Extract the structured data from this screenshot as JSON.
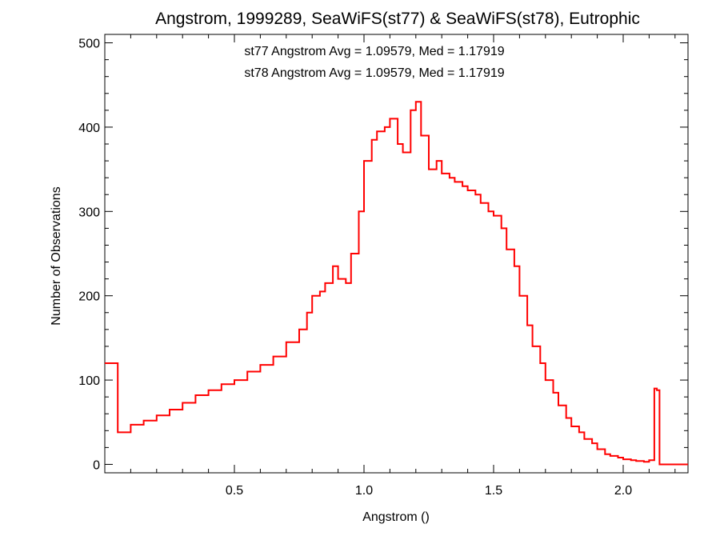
{
  "chart_data": {
    "type": "line",
    "title": "Angstrom, 1999289, SeaWiFS(st77) & SeaWiFS(st78), Eutrophic",
    "xlabel": "Angstrom ()",
    "ylabel": "Number of Observations",
    "xlim": [
      0.0,
      2.25
    ],
    "ylim": [
      -10,
      510
    ],
    "xticks": [
      0.5,
      1.0,
      1.5,
      2.0
    ],
    "xtick_labels": [
      "0.5",
      "1.0",
      "1.5",
      "2.0"
    ],
    "yticks": [
      0,
      100,
      200,
      300,
      400,
      500
    ],
    "ytick_labels": [
      "0",
      "100",
      "200",
      "300",
      "400",
      "500"
    ],
    "grid": false,
    "annotations": [
      {
        "text": "st77 Angstrom Avg = 1.09579, Med = 1.17919",
        "color": "#000000"
      },
      {
        "text": "st78 Angstrom Avg = 1.09579, Med = 1.17919",
        "color": "#ff0000"
      }
    ],
    "series": [
      {
        "color": "#ff0000",
        "step": "histogram",
        "x": [
          0.0,
          0.05,
          0.1,
          0.15,
          0.2,
          0.25,
          0.3,
          0.35,
          0.4,
          0.45,
          0.5,
          0.55,
          0.6,
          0.65,
          0.7,
          0.75,
          0.78,
          0.8,
          0.83,
          0.85,
          0.88,
          0.9,
          0.93,
          0.95,
          0.98,
          1.0,
          1.03,
          1.05,
          1.08,
          1.1,
          1.13,
          1.15,
          1.18,
          1.2,
          1.22,
          1.25,
          1.28,
          1.3,
          1.33,
          1.35,
          1.38,
          1.4,
          1.43,
          1.45,
          1.48,
          1.5,
          1.53,
          1.55,
          1.58,
          1.6,
          1.63,
          1.65,
          1.68,
          1.7,
          1.73,
          1.75,
          1.78,
          1.8,
          1.83,
          1.85,
          1.88,
          1.9,
          1.93,
          1.95,
          1.98,
          2.0,
          2.03,
          2.05,
          2.08,
          2.1,
          2.12,
          2.13,
          2.14,
          2.15,
          2.16,
          2.18,
          2.2,
          2.225
        ],
        "values": [
          120,
          38,
          47,
          52,
          58,
          65,
          73,
          82,
          88,
          95,
          100,
          110,
          118,
          128,
          145,
          160,
          180,
          200,
          205,
          215,
          235,
          220,
          215,
          250,
          300,
          360,
          385,
          395,
          400,
          410,
          380,
          370,
          420,
          430,
          390,
          350,
          360,
          345,
          340,
          335,
          330,
          325,
          320,
          310,
          300,
          295,
          280,
          255,
          235,
          200,
          165,
          140,
          120,
          100,
          85,
          70,
          55,
          45,
          38,
          30,
          25,
          18,
          12,
          10,
          8,
          6,
          5,
          4,
          3,
          5,
          90,
          88,
          0,
          0,
          0,
          0,
          0,
          0
        ]
      }
    ]
  }
}
